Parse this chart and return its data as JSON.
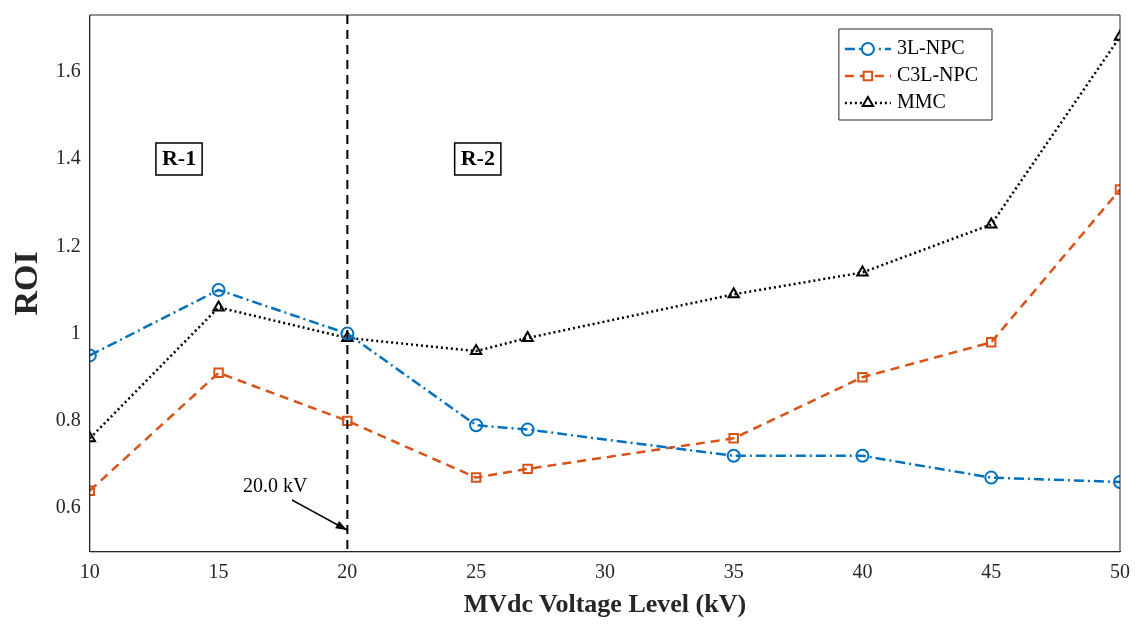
{
  "chart_data": {
    "type": "line",
    "xlabel": "MVdc Voltage Level (kV)",
    "ylabel": "ROI",
    "x": [
      10,
      15,
      20,
      25,
      27,
      35,
      40,
      45,
      50
    ],
    "series": [
      {
        "name": "3L-NPC",
        "color": "#0072bd",
        "marker": "circle",
        "line_style": "dashdot",
        "values": [
          0.95,
          1.1,
          1.0,
          0.79,
          0.78,
          0.72,
          0.72,
          0.67,
          0.66
        ]
      },
      {
        "name": "C3L-NPC",
        "color": "#d95319",
        "marker": "square",
        "line_style": "dashed",
        "values": [
          0.64,
          0.91,
          0.8,
          0.67,
          0.69,
          0.76,
          0.9,
          0.98,
          1.33
        ]
      },
      {
        "name": "MMC",
        "color": "#000000",
        "marker": "triangle",
        "line_style": "dotted",
        "values": [
          0.76,
          1.06,
          0.99,
          0.96,
          0.99,
          1.09,
          1.14,
          1.25,
          1.68
        ]
      }
    ],
    "xlim": [
      10,
      50
    ],
    "xticks": [
      10,
      15,
      20,
      25,
      30,
      35,
      40,
      45,
      50
    ],
    "ylim": [
      0.5,
      1.73
    ],
    "yticks": [
      0.6,
      0.8,
      1,
      1.2,
      1.4,
      1.6
    ],
    "grid": false,
    "legend": "top right",
    "ref_lines": [
      {
        "axis": "x",
        "value": 20,
        "color": "#000000",
        "line_style": "dashed"
      }
    ],
    "annotations": [
      "R-1",
      "R-2",
      {
        "text": "20.0 kV",
        "x": 20,
        "y": 0.55
      }
    ]
  }
}
